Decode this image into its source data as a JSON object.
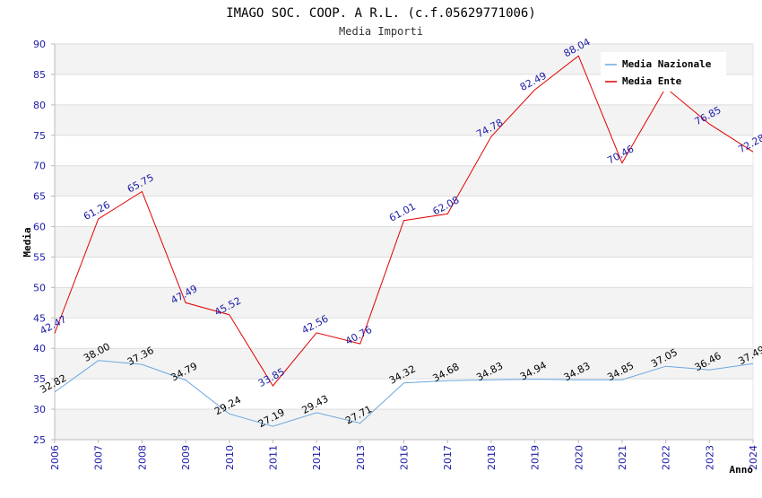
{
  "chart_data": {
    "type": "line",
    "title": "IMAGO SOC. COOP. A R.L. (c.f.05629771006)",
    "subtitle": "Media Importi",
    "xlabel": "Anno",
    "ylabel": "Media",
    "ylim": [
      25,
      90
    ],
    "yticks": [
      25,
      30,
      35,
      40,
      45,
      50,
      55,
      60,
      65,
      70,
      75,
      80,
      85,
      90
    ],
    "grid": true,
    "legend_position": "top-right",
    "categories": [
      "2006",
      "2007",
      "2008",
      "2009",
      "2010",
      "2011",
      "2012",
      "2013",
      "2016",
      "2017",
      "2018",
      "2019",
      "2020",
      "2021",
      "2022",
      "2023",
      "2024"
    ],
    "series": [
      {
        "name": "Media Nazionale",
        "color": "#6aa8e0",
        "values": [
          32.82,
          38.0,
          37.36,
          34.79,
          29.24,
          27.19,
          29.43,
          27.71,
          34.32,
          34.68,
          34.83,
          34.94,
          34.83,
          34.85,
          37.05,
          36.46,
          37.49
        ],
        "labels": [
          "32.82",
          "38.00",
          "37.36",
          "34.79",
          "29.24",
          "27.19",
          "29.43",
          "27.71",
          "34.32",
          "34.68",
          "34.83",
          "34.94",
          "34.83",
          "34.85",
          "37.05",
          "36.46",
          "37.49"
        ]
      },
      {
        "name": "Media Ente",
        "color": "#e00000",
        "values": [
          42.47,
          61.26,
          65.75,
          47.49,
          45.52,
          33.85,
          42.56,
          40.76,
          61.01,
          62.08,
          74.78,
          82.49,
          88.04,
          70.46,
          82.8,
          76.85,
          72.28
        ],
        "labels": [
          "42.47",
          "61.26",
          "65.75",
          "47.49",
          "45.52",
          "33.85",
          "42.56",
          "40.76",
          "61.01",
          "62.08",
          "74.78",
          "82.49",
          "88.04",
          "70.46",
          "",
          "76.85",
          "72.28"
        ]
      }
    ]
  }
}
